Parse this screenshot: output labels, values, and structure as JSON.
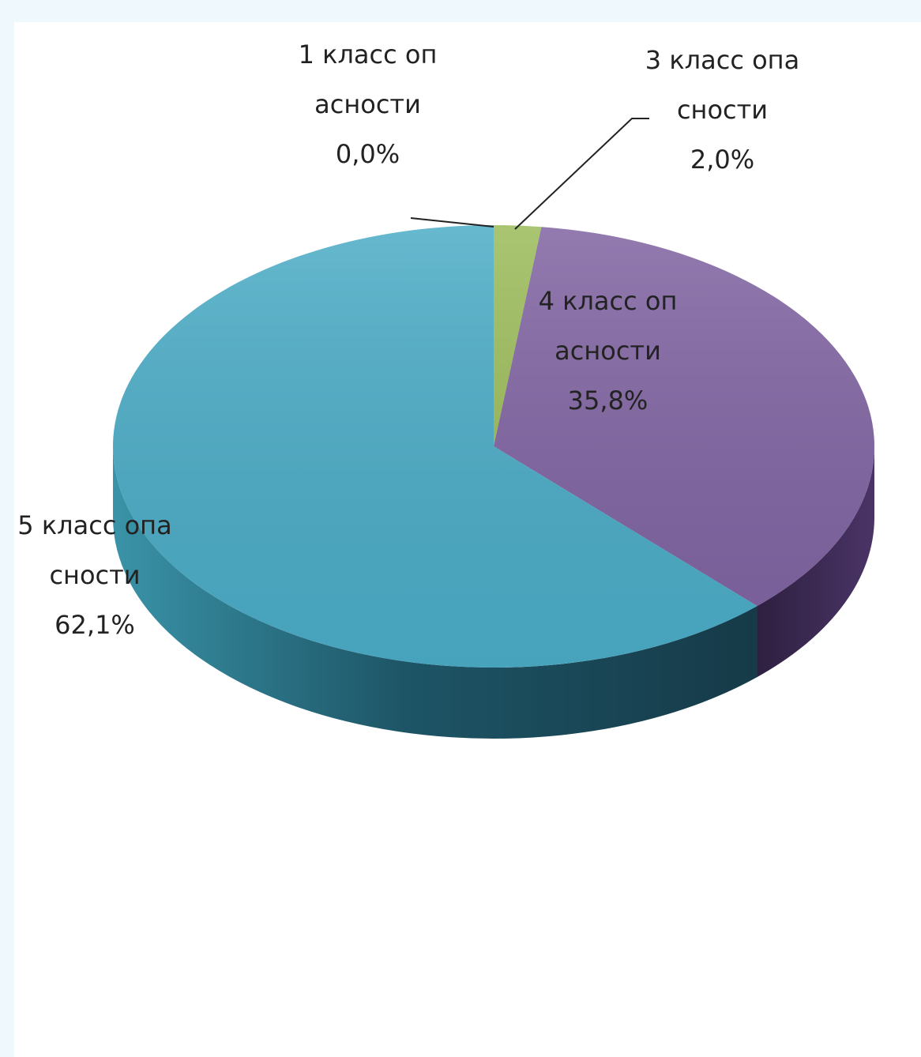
{
  "chart_data": {
    "type": "pie3d",
    "categories": [
      "1 класс опасности",
      "3 класс опасности",
      "4 класс опасности",
      "5 класс опасности"
    ],
    "values": [
      0.0,
      2.0,
      35.8,
      62.1
    ],
    "value_labels": [
      "0,0%",
      "2,0%",
      "35,8%",
      "62,1%"
    ],
    "colors": [
      "#c0504d",
      "#9bbb59",
      "#8064a2",
      "#4bacc6"
    ]
  }
}
